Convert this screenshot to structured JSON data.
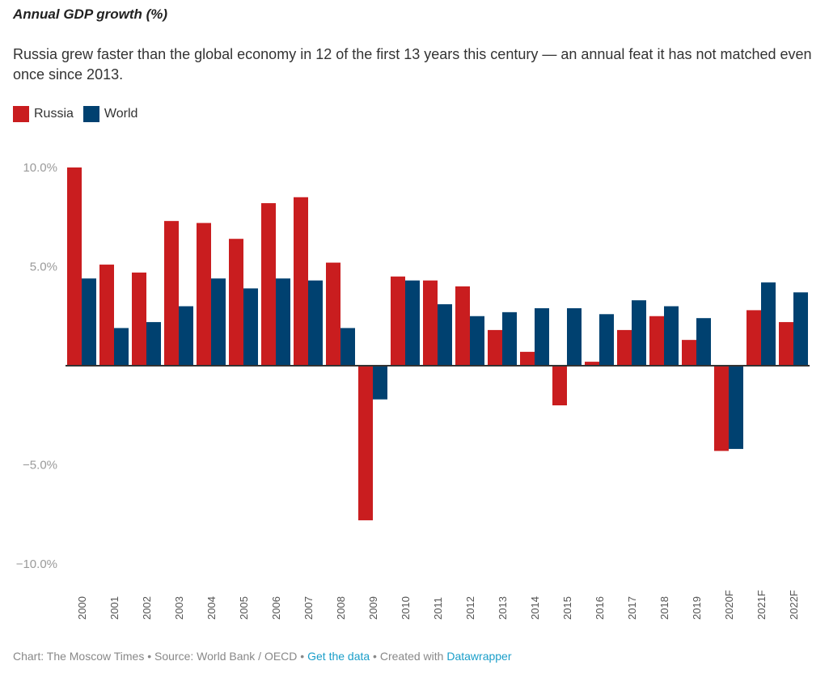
{
  "header": {
    "title": "Annual GDP growth (%)",
    "subtitle": "Russia grew faster than the global economy in 12 of the first 13 years this century — an annual feat it has not matched even once since 2013."
  },
  "legend": [
    {
      "label": "Russia",
      "color": "#c91d1f"
    },
    {
      "label": "World",
      "color": "#004170"
    }
  ],
  "footer": {
    "credit": "Chart: The Moscow Times",
    "sep1": " • ",
    "source": "Source: World Bank / OECD",
    "sep2": " • ",
    "get_data": "Get the data",
    "sep3": " • ",
    "created_with": "Created with ",
    "tool": "Datawrapper"
  },
  "chart_data": {
    "type": "bar",
    "title": "Annual GDP growth (%)",
    "xlabel": "",
    "ylabel": "",
    "ylim": [
      -10,
      10
    ],
    "yticks": [
      10,
      5,
      -5,
      -10
    ],
    "ytick_labels": [
      "10.0%",
      "5.0%",
      "−5.0%",
      "−10.0%"
    ],
    "grid": false,
    "legend_position": "top-left",
    "categories": [
      "2000",
      "2001",
      "2002",
      "2003",
      "2004",
      "2005",
      "2006",
      "2007",
      "2008",
      "2009",
      "2010",
      "2011",
      "2012",
      "2013",
      "2014",
      "2015",
      "2016",
      "2017",
      "2018",
      "2019",
      "2020F",
      "2021F",
      "2022F"
    ],
    "series": [
      {
        "name": "Russia",
        "color": "#c91d1f",
        "values": [
          10.0,
          5.1,
          4.7,
          7.3,
          7.2,
          6.4,
          8.2,
          8.5,
          5.2,
          -7.8,
          4.5,
          4.3,
          4.0,
          1.8,
          0.7,
          -2.0,
          0.2,
          1.8,
          2.5,
          1.3,
          -4.3,
          2.8,
          2.2
        ]
      },
      {
        "name": "World",
        "color": "#004170",
        "values": [
          4.4,
          1.9,
          2.2,
          3.0,
          4.4,
          3.9,
          4.4,
          4.3,
          1.9,
          -1.7,
          4.3,
          3.1,
          2.5,
          2.7,
          2.9,
          2.9,
          2.6,
          3.3,
          3.0,
          2.4,
          -4.2,
          4.2,
          3.7
        ]
      }
    ]
  }
}
